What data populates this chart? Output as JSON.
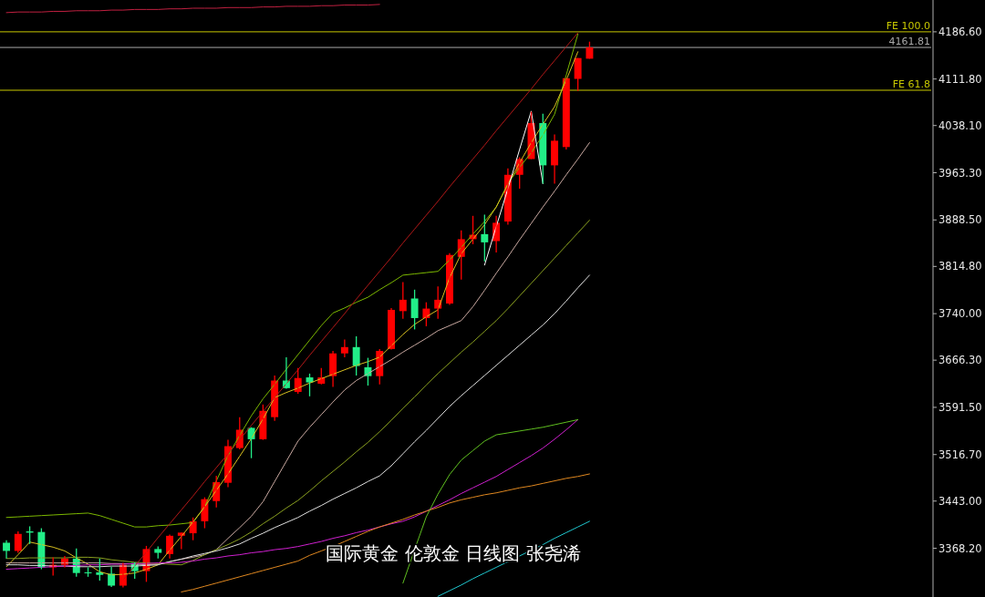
{
  "chart_data": {
    "type": "candlestick",
    "categories": [
      null,
      null,
      null,
      null,
      null,
      null,
      null,
      null,
      null,
      null,
      null,
      null,
      null,
      null,
      null,
      null,
      null,
      null,
      null,
      null,
      null,
      null,
      null,
      null,
      null,
      null,
      null,
      null,
      null,
      null,
      null,
      null,
      null,
      null,
      null,
      null,
      null,
      null,
      null,
      null,
      null,
      null,
      null,
      null,
      null,
      null,
      null,
      null,
      null,
      null,
      null
    ],
    "ohlc": [
      [
        3377,
        3381,
        3352,
        3364
      ],
      [
        3364,
        3395,
        3361,
        3391
      ],
      [
        3395,
        3403,
        3375,
        3393
      ],
      [
        3394,
        3400,
        3335,
        3338
      ],
      [
        3338,
        3354,
        3325,
        3342
      ],
      [
        3342,
        3356,
        3338,
        3352
      ],
      [
        3352,
        3368,
        3323,
        3329
      ],
      [
        3330,
        3338,
        3323,
        3329
      ],
      [
        3330,
        3352,
        3317,
        3326
      ],
      [
        3328,
        3339,
        3307,
        3309
      ],
      [
        3309,
        3345,
        3306,
        3342
      ],
      [
        3345,
        3346,
        3320,
        3332
      ],
      [
        3332,
        3372,
        3315,
        3367
      ],
      [
        3367,
        3371,
        3352,
        3361
      ],
      [
        3359,
        3390,
        3352,
        3388
      ],
      [
        3388,
        3393,
        3367,
        3393
      ],
      [
        3392,
        3417,
        3381,
        3411
      ],
      [
        3411,
        3449,
        3400,
        3446
      ],
      [
        3443,
        3483,
        3433,
        3473
      ],
      [
        3472,
        3540,
        3465,
        3530
      ],
      [
        3527,
        3576,
        3525,
        3556
      ],
      [
        3559,
        3560,
        3511,
        3541
      ],
      [
        3541,
        3596,
        3540,
        3586
      ],
      [
        3576,
        3642,
        3570,
        3634
      ],
      [
        3634,
        3671,
        3621,
        3622
      ],
      [
        3616,
        3654,
        3613,
        3638
      ],
      [
        3639,
        3645,
        3609,
        3631
      ],
      [
        3629,
        3654,
        3628,
        3639
      ],
      [
        3641,
        3681,
        3624,
        3677
      ],
      [
        3677,
        3699,
        3671,
        3687
      ],
      [
        3687,
        3704,
        3642,
        3657
      ],
      [
        3655,
        3670,
        3626,
        3641
      ],
      [
        3641,
        3684,
        3628,
        3681
      ],
      [
        3684,
        3749,
        3683,
        3746
      ],
      [
        3744,
        3790,
        3732,
        3762
      ],
      [
        3764,
        3778,
        3715,
        3733
      ],
      [
        3733,
        3758,
        3720,
        3748
      ],
      [
        3748,
        3783,
        3732,
        3762
      ],
      [
        3756,
        3836,
        3754,
        3833
      ],
      [
        3830,
        3872,
        3794,
        3858
      ],
      [
        3858,
        3895,
        3850,
        3865
      ],
      [
        3866,
        3897,
        3823,
        3853
      ],
      [
        3855,
        3895,
        3837,
        3884
      ],
      [
        3886,
        3970,
        3881,
        3960
      ],
      [
        3960,
        3988,
        3938,
        3985
      ],
      [
        3985,
        4060,
        3985,
        4042
      ],
      [
        4042,
        4057,
        3946,
        3975
      ],
      [
        3975,
        4024,
        3946,
        4014
      ],
      [
        4004,
        4113,
        4000,
        4113
      ],
      [
        4112,
        4145,
        4093,
        4145
      ],
      [
        4144,
        4171,
        4144,
        4162
      ]
    ],
    "colors": [
      "#22ee88",
      "#ff0000",
      "#22ee88",
      "#22ee88",
      "#ff0000",
      "#ff0000",
      "#22ee88",
      "#22ee88",
      "#22ee88",
      "#22ee88",
      "#ff0000",
      "#22ee88",
      "#ff0000",
      "#22ee88",
      "#ff0000",
      "#ff0000",
      "#ff0000",
      "#ff0000",
      "#ff0000",
      "#ff0000",
      "#ff0000",
      "#22ee88",
      "#ff0000",
      "#ff0000",
      "#22ee88",
      "#ff0000",
      "#22ee88",
      "#ff0000",
      "#ff0000",
      "#ff0000",
      "#22ee88",
      "#22ee88",
      "#ff0000",
      "#ff0000",
      "#ff0000",
      "#22ee88",
      "#ff0000",
      "#ff0000",
      "#ff0000",
      "#ff0000",
      "#ff0000",
      "#22ee88",
      "#ff0000",
      "#ff0000",
      "#ff0000",
      "#ff0000",
      "#22ee88",
      "#ff0000",
      "#ff0000",
      "#ff0000",
      "#ff0000"
    ],
    "series": [
      {
        "type": "line",
        "color": "#7cb800",
        "values": [
          3417,
          3418,
          3419,
          3420,
          3421,
          3422,
          3423,
          3424,
          3420,
          3414,
          3408,
          3402,
          3402,
          3404,
          3405,
          3407,
          3409,
          3434,
          3475,
          3515,
          3547,
          3578,
          3605,
          3628,
          3652,
          3675,
          3698,
          3721,
          3741,
          3749,
          3758,
          3766,
          3778,
          3789,
          3801,
          3803,
          3805,
          3807,
          3825,
          3845,
          3866,
          3886,
          3909,
          3946,
          3972,
          3995,
          4023,
          4056,
          4118,
          4183,
          null
        ]
      },
      {
        "type": "line",
        "color": "#d8c020",
        "values": [
          3339,
          3358,
          3378,
          3374,
          3370,
          3364,
          3353,
          3343,
          3331,
          3326,
          3327,
          3329,
          3335,
          3342,
          3365,
          3387,
          3410,
          3434,
          3460,
          3486,
          3514,
          3542,
          3573,
          3607,
          3615,
          3622,
          3630,
          3637,
          3644,
          3651,
          3658,
          3664,
          3671,
          3689,
          3707,
          3723,
          3735,
          3746,
          3797,
          3835,
          3858,
          3881,
          3909,
          3945,
          3979,
          4011,
          4040,
          4068,
          4110,
          4155,
          null
        ]
      },
      {
        "type": "line",
        "color": "#c8a8a0",
        "values": [
          3345,
          3345,
          3345,
          3345,
          3345,
          3345,
          3345,
          3345,
          3345,
          3344,
          3344,
          3343,
          3342,
          3343,
          3347,
          3351,
          3354,
          3358,
          3366,
          3384,
          3401,
          3419,
          3442,
          3474,
          3506,
          3538,
          3560,
          3580,
          3600,
          3619,
          3634,
          3645,
          3656,
          3667,
          3679,
          3690,
          3701,
          3713,
          3721,
          3729,
          3751,
          3777,
          3804,
          3830,
          3857,
          3883,
          3909,
          3934,
          3960,
          3985,
          4011
        ]
      },
      {
        "type": "line",
        "color": "#8aa020",
        "values": [
          3352,
          3352,
          3353,
          3353,
          3353,
          3353,
          3354,
          3354,
          3353,
          3350,
          3348,
          3346,
          3345,
          3344,
          3343,
          3342,
          3349,
          3358,
          3366,
          3374,
          3383,
          3394,
          3407,
          3419,
          3432,
          3444,
          3459,
          3475,
          3490,
          3505,
          3521,
          3536,
          3553,
          3571,
          3590,
          3608,
          3627,
          3645,
          3662,
          3679,
          3695,
          3712,
          3729,
          3748,
          3768,
          3788,
          3808,
          3828,
          3848,
          3868,
          3888
        ]
      },
      {
        "type": "line",
        "color": "#e0e0e0",
        "values": [
          3342,
          3342,
          3341,
          3341,
          3340,
          3340,
          3339,
          3339,
          3339,
          3340,
          3340,
          3340,
          3341,
          3342,
          3347,
          3351,
          3356,
          3360,
          3364,
          3369,
          3375,
          3384,
          3392,
          3401,
          3409,
          3417,
          3427,
          3436,
          3446,
          3455,
          3464,
          3474,
          3483,
          3499,
          3518,
          3537,
          3555,
          3574,
          3593,
          3610,
          3626,
          3642,
          3658,
          3674,
          3690,
          3706,
          3722,
          3740,
          3760,
          3781,
          3801
        ]
      },
      {
        "type": "line",
        "color": "#d020d0",
        "values": [
          3335,
          3336,
          3337,
          3338,
          3339,
          3340,
          3341,
          3342,
          3342,
          3343,
          3343,
          3344,
          3344,
          3345,
          3345,
          3346,
          3348,
          3351,
          3353,
          3356,
          3358,
          3361,
          3363,
          3366,
          3368,
          3371,
          3375,
          3379,
          3384,
          3388,
          3393,
          3397,
          3402,
          3407,
          3411,
          3418,
          3427,
          3436,
          3445,
          3455,
          3464,
          3473,
          3482,
          3493,
          3504,
          3515,
          3527,
          3541,
          3556,
          3572,
          null
        ]
      },
      {
        "type": "line",
        "color": "#e08820",
        "values": [
          null,
          null,
          null,
          null,
          null,
          null,
          null,
          null,
          null,
          null,
          null,
          null,
          null,
          null,
          null,
          3299,
          3303,
          3308,
          3313,
          3318,
          3323,
          3328,
          3333,
          3338,
          3343,
          3348,
          3357,
          3364,
          3371,
          3379,
          3387,
          3395,
          3402,
          3408,
          3414,
          3421,
          3427,
          3433,
          3440,
          3445,
          3449,
          3453,
          3456,
          3460,
          3464,
          3467,
          3471,
          3475,
          3479,
          3482,
          3486
        ]
      },
      {
        "type": "line",
        "color": "#20c8d0",
        "values": [
          null,
          null,
          null,
          null,
          null,
          null,
          null,
          null,
          null,
          null,
          null,
          null,
          null,
          null,
          null,
          null,
          null,
          null,
          null,
          null,
          null,
          null,
          null,
          null,
          null,
          null,
          null,
          null,
          null,
          null,
          null,
          null,
          null,
          null,
          null,
          null,
          null,
          3292,
          3301,
          3310,
          3320,
          3329,
          3338,
          3347,
          3356,
          3365,
          3374,
          3384,
          3393,
          3402,
          3411
        ]
      },
      {
        "type": "line",
        "color": "#60c020",
        "values": [
          null,
          null,
          null,
          null,
          null,
          null,
          null,
          null,
          null,
          null,
          null,
          null,
          null,
          null,
          null,
          null,
          null,
          null,
          null,
          null,
          null,
          null,
          null,
          null,
          null,
          null,
          null,
          null,
          null,
          null,
          null,
          null,
          null,
          null,
          3313,
          3366,
          3418,
          3454,
          3485,
          3508,
          3523,
          3538,
          3548,
          3551,
          3554,
          3557,
          3560,
          3564,
          3568,
          3572,
          null
        ]
      },
      {
        "type": "line",
        "color": "#b01818",
        "values": [
          null,
          null,
          null,
          null,
          null,
          null,
          null,
          null,
          null,
          null,
          3318,
          3340,
          3362,
          3385,
          3407,
          3429,
          3451,
          3474,
          3496,
          3518,
          3540,
          3563,
          3585,
          3607,
          3629,
          3651,
          3674,
          3696,
          3718,
          3740,
          3763,
          3785,
          3807,
          3829,
          3852,
          3874,
          3896,
          3918,
          3941,
          3963,
          3985,
          4007,
          4030,
          4052,
          4074,
          4096,
          4119,
          4141,
          4163,
          4185,
          null
        ]
      },
      {
        "type": "line",
        "color": "#c02040",
        "values": [
          4217,
          4218,
          4218,
          4218,
          4219,
          4219,
          4220,
          4220,
          4220,
          4221,
          4221,
          4222,
          4222,
          4222,
          4223,
          4223,
          4224,
          4224,
          4224,
          4225,
          4225,
          4225,
          4226,
          4226,
          4227,
          4227,
          4227,
          4228,
          4228,
          4229,
          4229,
          4229,
          4230,
          null,
          null,
          null,
          null,
          null,
          null,
          null,
          null,
          null,
          null,
          null,
          null,
          null,
          null,
          null,
          null,
          null,
          null
        ]
      },
      {
        "type": "line",
        "color": "#ffffff",
        "values": [
          null,
          null,
          null,
          null,
          null,
          null,
          null,
          null,
          null,
          null,
          null,
          null,
          null,
          null,
          null,
          null,
          null,
          null,
          null,
          null,
          null,
          null,
          null,
          null,
          null,
          null,
          null,
          null,
          null,
          null,
          null,
          null,
          null,
          null,
          null,
          null,
          null,
          null,
          null,
          null,
          null,
          3817,
          3878,
          3938,
          4000,
          4061,
          3946,
          null,
          null,
          null,
          null
        ]
      }
    ],
    "ylim": [
      3291,
      4237
    ],
    "yticks": [
      {
        "value": 4186.6,
        "label": "4186.60"
      },
      {
        "value": 4111.8,
        "label": "4111.80"
      },
      {
        "value": 4038.1,
        "label": "4038.10"
      },
      {
        "value": 3963.3,
        "label": "3963.30"
      },
      {
        "value": 3888.5,
        "label": "3888.50"
      },
      {
        "value": 3814.8,
        "label": "3814.80"
      },
      {
        "value": 3740,
        "label": "3740.00"
      },
      {
        "value": 3666.3,
        "label": "3666.30"
      },
      {
        "value": 3591.5,
        "label": "3591.50"
      },
      {
        "value": 3516.7,
        "label": "3516.70"
      },
      {
        "value": 3443,
        "label": "3443.00"
      },
      {
        "value": 3368.2,
        "label": "3368.20"
      }
    ],
    "ref_lines": [
      {
        "axis": "y",
        "value": 4186.6,
        "label": "FE 100.0",
        "color": "#c8c800"
      },
      {
        "axis": "y",
        "value": 4094,
        "label": "FE 61.8",
        "color": "#c8c800"
      },
      {
        "axis": "y",
        "value": 4161.81,
        "label": "4161.81",
        "color": "#a8a8a8"
      }
    ],
    "annotations": [
      "国际黄金 伦敦金 日线图 张尧浠"
    ],
    "tick_labels": "y"
  }
}
